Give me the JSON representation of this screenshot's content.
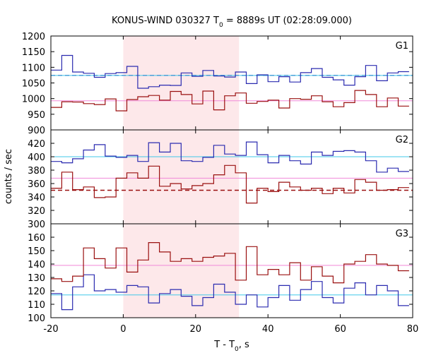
{
  "title": {
    "prefix": "KONUS-WIND 030327 T",
    "sub": "0",
    "suffix": " = 8889s UT (02:28:09.000)"
  },
  "xlabel": {
    "prefix": "T - T",
    "sub": "0",
    "suffix": ", s"
  },
  "ylabel": "counts / sec",
  "colors": {
    "blue": "#2b2bb0",
    "red": "#9a1010",
    "cyan": "#40c8e8",
    "pink": "#f088d8",
    "shade": "#fde8ea"
  },
  "chart_data": {
    "type": "line",
    "x_range": [
      -20,
      80
    ],
    "x_ticks": [
      -20,
      0,
      20,
      40,
      60,
      80
    ],
    "shaded_interval": [
      0,
      32
    ],
    "bin_edges": [
      -20,
      -17,
      -14,
      -11,
      -8,
      -5,
      -2,
      1,
      4,
      7,
      10,
      13,
      16,
      19,
      22,
      25,
      28,
      31,
      34,
      37,
      40,
      43,
      46,
      49,
      52,
      55,
      58,
      61,
      64,
      67,
      70,
      73,
      76,
      79
    ],
    "panels": [
      {
        "name": "G1",
        "ylim": [
          900,
          1200
        ],
        "yticks": [
          900,
          950,
          1000,
          1050,
          1100,
          1150,
          1200
        ],
        "series": [
          {
            "color_key": "blue",
            "values": [
              1091,
              1138,
              1085,
              1081,
              1068,
              1080,
              1083,
              1103,
              1033,
              1038,
              1043,
              1042,
              1082,
              1071,
              1090,
              1072,
              1069,
              1085,
              1048,
              1076,
              1054,
              1070,
              1053,
              1083,
              1096,
              1068,
              1060,
              1043,
              1070,
              1106,
              1057,
              1082,
              1086
            ]
          },
          {
            "color_key": "red",
            "values": [
              972,
              990,
              989,
              984,
              981,
              999,
              961,
              997,
              1006,
              1010,
              995,
              1023,
              1013,
              983,
              1024,
              964,
              1009,
              1018,
              985,
              991,
              995,
              970,
              1000,
              998,
              1009,
              990,
              974,
              987,
              1026,
              1013,
              974,
              1002,
              976
            ]
          }
        ],
        "lines": [
          {
            "color_key": "blue",
            "value": 1074,
            "dash": true
          },
          {
            "color_key": "cyan",
            "value": 1074,
            "dash": false
          },
          {
            "color_key": "pink",
            "value": 993,
            "dash": false
          }
        ]
      },
      {
        "name": "G2",
        "ylim": [
          300,
          440
        ],
        "yticks": [
          300,
          320,
          340,
          360,
          380,
          400,
          420
        ],
        "series": [
          {
            "color_key": "blue",
            "values": [
              393,
              391,
              397,
              410,
              418,
              401,
              399,
              402,
              393,
              421,
              407,
              420,
              394,
              393,
              399,
              417,
              404,
              402,
              422,
              403,
              391,
              402,
              394,
              389,
              407,
              402,
              408,
              409,
              407,
              394,
              377,
              383,
              378
            ]
          },
          {
            "color_key": "red",
            "values": [
              353,
              377,
              351,
              355,
              339,
              340,
              368,
              376,
              368,
              386,
              356,
              360,
              352,
              357,
              360,
              373,
              387,
              376,
              331,
              353,
              348,
              362,
              355,
              350,
              353,
              345,
              353,
              346,
              366,
              362,
              350,
              351,
              354
            ]
          }
        ],
        "lines": [
          {
            "color_key": "red",
            "value": 350,
            "dash": true
          },
          {
            "color_key": "cyan",
            "value": 400,
            "dash": false
          },
          {
            "color_key": "pink",
            "value": 368,
            "dash": false
          }
        ]
      },
      {
        "name": "G3",
        "ylim": [
          100,
          170
        ],
        "yticks": [
          100,
          110,
          120,
          130,
          140,
          150,
          160
        ],
        "series": [
          {
            "color_key": "blue",
            "values": [
              118,
              106,
              123,
              132,
              120,
              121,
              119,
              124,
              123,
              111,
              118,
              121,
              116,
              109,
              115,
              125,
              119,
              110,
              117,
              108,
              115,
              124,
              113,
              121,
              127,
              115,
              111,
              122,
              126,
              117,
              124,
              120,
              109
            ]
          },
          {
            "color_key": "red",
            "values": [
              129,
              127,
              131,
              152,
              144,
              137,
              152,
              134,
              143,
              156,
              149,
              142,
              144,
              142,
              145,
              146,
              148,
              128,
              153,
              132,
              136,
              132,
              141,
              128,
              138,
              131,
              126,
              140,
              142,
              147,
              140,
              139,
              135
            ]
          }
        ],
        "lines": [
          {
            "color_key": "cyan",
            "value": 117,
            "dash": false
          },
          {
            "color_key": "pink",
            "value": 139,
            "dash": false
          }
        ]
      }
    ]
  }
}
